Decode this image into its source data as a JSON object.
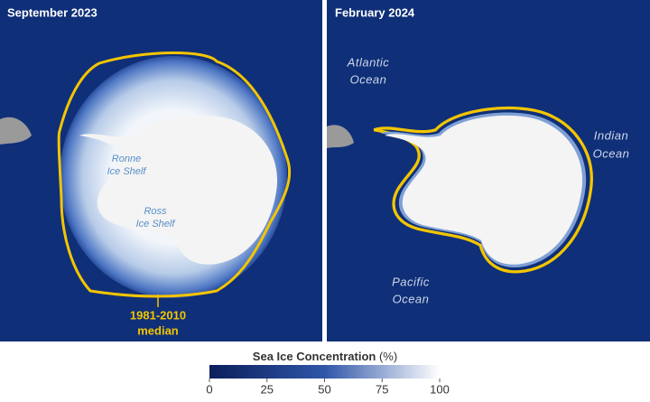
{
  "panels": [
    {
      "title": "September 2023",
      "labels": [
        {
          "lines": [
            "Ronne",
            "Ice Shelf"
          ]
        },
        {
          "lines": [
            "Ross",
            "Ice Shelf"
          ]
        }
      ],
      "median_label": {
        "lines": [
          "1981-2010",
          "median"
        ]
      }
    },
    {
      "title": "February 2024",
      "labels": [
        {
          "lines": [
            "Atlantic",
            "Ocean"
          ]
        },
        {
          "lines": [
            "Indian",
            "Ocean"
          ]
        },
        {
          "lines": [
            "Pacific",
            "Ocean"
          ]
        }
      ]
    }
  ],
  "colorbar": {
    "title": "Sea Ice Concentration",
    "unit": "(%)",
    "range": [
      0,
      100
    ],
    "ticks": [
      0,
      25,
      50,
      75,
      100
    ],
    "colors": [
      "#0b1f5c",
      "#2f56a8",
      "#ffffff"
    ]
  }
}
